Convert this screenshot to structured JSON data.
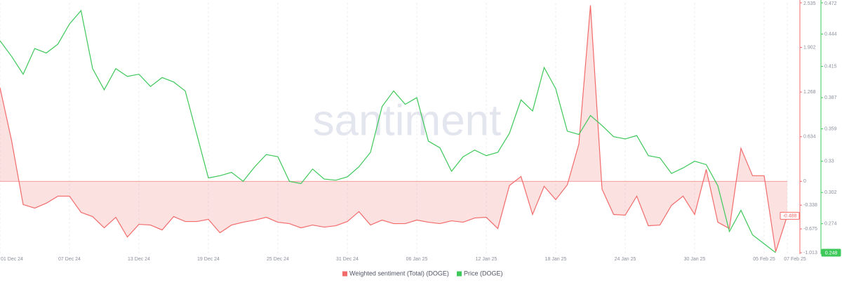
{
  "chart_data": {
    "type": "line",
    "watermark": "santiment",
    "categories": [
      "01 Dec 24",
      null,
      null,
      null,
      null,
      null,
      "07 Dec 24",
      null,
      null,
      null,
      null,
      null,
      "13 Dec 24",
      null,
      null,
      null,
      null,
      null,
      "19 Dec 24",
      null,
      null,
      null,
      null,
      null,
      "25 Dec 24",
      null,
      null,
      null,
      null,
      null,
      "31 Dec 24",
      null,
      null,
      null,
      null,
      null,
      "06 Jan 25",
      null,
      null,
      null,
      null,
      null,
      "12 Jan 25",
      null,
      null,
      null,
      null,
      null,
      "18 Jan 25",
      null,
      null,
      null,
      null,
      null,
      "24 Jan 25",
      null,
      null,
      null,
      null,
      null,
      "30 Jan 25",
      null,
      null,
      null,
      null,
      null,
      "05 Feb 25",
      null,
      "07 Feb 25"
    ],
    "series": [
      {
        "name": "Weighted sentiment (Total) (DOGE)",
        "color": "#f26b6b",
        "area": true,
        "values": [
          1.33,
          0.58,
          -0.33,
          -0.38,
          -0.31,
          -0.21,
          -0.21,
          -0.44,
          -0.5,
          -0.66,
          -0.51,
          -0.79,
          -0.61,
          -0.62,
          -0.69,
          -0.5,
          -0.57,
          -0.57,
          -0.54,
          -0.73,
          -0.62,
          -0.58,
          -0.55,
          -0.51,
          -0.58,
          -0.6,
          -0.66,
          -0.62,
          -0.65,
          -0.63,
          -0.57,
          -0.43,
          -0.62,
          -0.55,
          -0.6,
          -0.6,
          -0.55,
          -0.58,
          -0.6,
          -0.56,
          -0.58,
          -0.52,
          -0.51,
          -0.67,
          -0.06,
          0.07,
          -0.47,
          -0.07,
          -0.26,
          -0.05,
          0.53,
          2.5,
          -0.11,
          -0.47,
          -0.48,
          -0.21,
          -0.63,
          -0.62,
          -0.34,
          -0.21,
          -0.47,
          0.17,
          -0.58,
          -0.67,
          0.47,
          0.08,
          0.08,
          -1.0,
          -0.488
        ]
      },
      {
        "name": "Price (DOGE)",
        "color": "#3ec85a",
        "axis": "y2",
        "values": [
          0.438,
          0.424,
          0.408,
          0.431,
          0.427,
          0.435,
          0.453,
          0.465,
          0.413,
          0.394,
          0.413,
          0.406,
          0.408,
          0.397,
          0.405,
          0.401,
          0.393,
          0.354,
          0.315,
          0.317,
          0.32,
          0.312,
          0.325,
          0.336,
          0.334,
          0.312,
          0.31,
          0.323,
          0.314,
          0.313,
          0.316,
          0.325,
          0.338,
          0.379,
          0.393,
          0.381,
          0.387,
          0.348,
          0.342,
          0.321,
          0.334,
          0.34,
          0.335,
          0.338,
          0.355,
          0.385,
          0.375,
          0.414,
          0.395,
          0.357,
          0.354,
          0.371,
          0.362,
          0.352,
          0.35,
          0.353,
          0.335,
          0.333,
          0.319,
          0.324,
          0.33,
          0.327,
          0.308,
          0.267,
          0.286,
          0.264,
          0.256,
          0.248,
          null
        ]
      }
    ],
    "ylim": [
      -1.013,
      2.535
    ],
    "yticks": [
      2.535,
      1.902,
      1.268,
      0.634,
      0,
      -0.338,
      -0.675,
      -1.013
    ],
    "y2lim": [
      0.248,
      0.472
    ],
    "y2ticks": [
      0.472,
      0.444,
      0.415,
      0.387,
      0.359,
      0.33,
      0.302,
      0.274
    ],
    "legend": "bottom"
  }
}
